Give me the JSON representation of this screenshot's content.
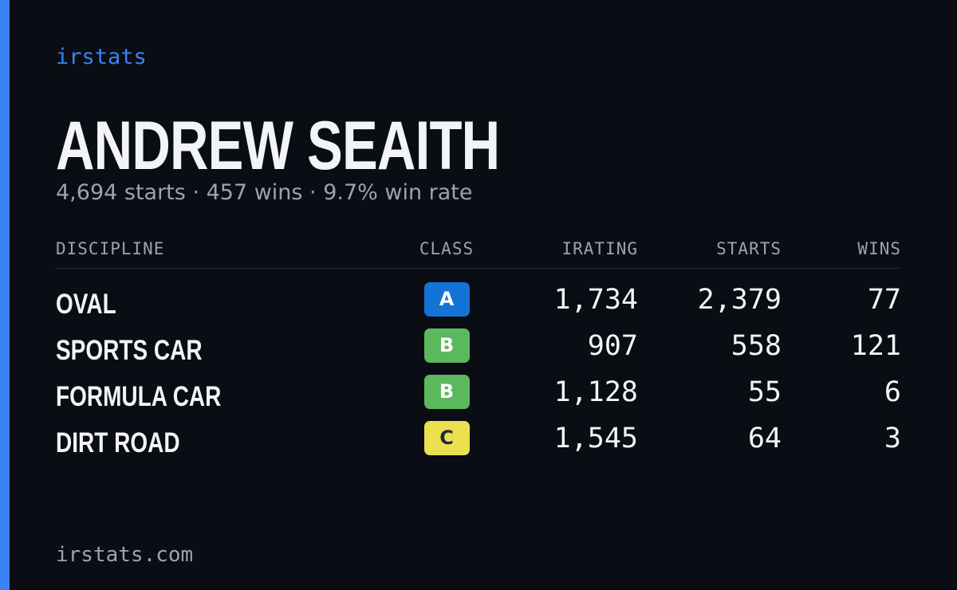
{
  "brand": "irstats",
  "driver": {
    "name": "ANDREW SEAITH",
    "summary": "4,694 starts · 457 wins · 9.7% win rate"
  },
  "table": {
    "headers": [
      "DISCIPLINE",
      "CLASS",
      "IRATING",
      "STARTS",
      "WINS"
    ],
    "rows": [
      {
        "discipline": "OVAL",
        "class": "A",
        "class_color": "#1473d6",
        "irating": "1,734",
        "starts": "2,379",
        "wins": "77"
      },
      {
        "discipline": "SPORTS CAR",
        "class": "B",
        "class_color": "#5cb85c",
        "irating": "907",
        "starts": "558",
        "wins": "121"
      },
      {
        "discipline": "FORMULA CAR",
        "class": "B",
        "class_color": "#5cb85c",
        "irating": "1,128",
        "starts": "55",
        "wins": "6"
      },
      {
        "discipline": "DIRT ROAD",
        "class": "C",
        "class_color": "#ebe04f",
        "irating": "1,545",
        "starts": "64",
        "wins": "3"
      }
    ]
  },
  "footer": "irstats.com"
}
